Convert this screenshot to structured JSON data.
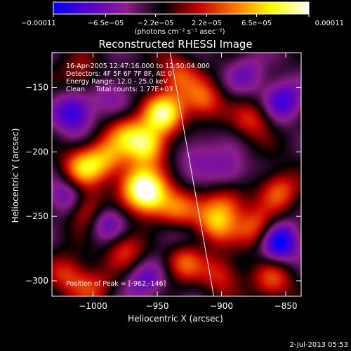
{
  "colorbar": {
    "tick_values": [
      -0.00011,
      -6.5e-05,
      -2.2e-05,
      2.2e-05,
      6.5e-05,
      0.00011
    ],
    "tick_labels": [
      "−0.00011",
      "−6.5e−05",
      "−2.2e−05",
      "2.2e−05",
      "6.5e−05",
      "0.00011"
    ],
    "range": [
      -0.00011,
      0.00011
    ],
    "unit_label": "(photons cm⁻² s⁻¹ asec⁻²)",
    "colors": [
      "#0000ff",
      "#5a00c8",
      "#8c1e8c",
      "#000000",
      "#c80000",
      "#ff7800",
      "#ffff00",
      "#ffffff"
    ]
  },
  "chart_data": {
    "type": "heatmap",
    "title": "Reconstructed RHESSI Image",
    "xlabel": "Heliocentric X (arcsec)",
    "ylabel": "Heliocentric Y (arcsec)",
    "xlim": [
      -1032,
      -838
    ],
    "ylim": [
      -312,
      -123
    ],
    "xticks": [
      -1000,
      -950,
      -900,
      -850
    ],
    "yticks": [
      -150,
      -200,
      -250,
      -300
    ],
    "xtick_labels": [
      "−1000",
      "−950",
      "−900",
      "−850"
    ],
    "ytick_labels": [
      "−150",
      "−200",
      "−250",
      "−300"
    ],
    "limb_line": [
      [
        -940,
        -123
      ],
      [
        -906,
        -312
      ]
    ],
    "info_lines": [
      "16-Apr-2005 12:47:16.000 to 12:50:04.000",
      "Detectors: 4F 5F 6F 7F 8F, Att 0",
      "Energy Range: 12.0 - 25.0 keV",
      "Clean     Total counts: 1.77E+03"
    ],
    "peak_label": "Position of Peak = [-962,-146]",
    "peak_position": [
      -962,
      -146
    ],
    "blobs": [
      {
        "x": -945,
        "y": -170,
        "v": 1.0
      },
      {
        "x": -958,
        "y": -195,
        "v": 0.95
      },
      {
        "x": -955,
        "y": -235,
        "v": 0.85
      },
      {
        "x": -965,
        "y": -225,
        "v": 0.8
      },
      {
        "x": -935,
        "y": -245,
        "v": 0.6
      },
      {
        "x": -1008,
        "y": -212,
        "v": 0.75
      },
      {
        "x": -990,
        "y": -205,
        "v": 0.6
      },
      {
        "x": -1005,
        "y": -245,
        "v": 0.65
      },
      {
        "x": -975,
        "y": -185,
        "v": 0.55
      },
      {
        "x": -915,
        "y": -160,
        "v": 0.6
      },
      {
        "x": -905,
        "y": -255,
        "v": 0.7
      },
      {
        "x": -895,
        "y": -240,
        "v": 0.5
      },
      {
        "x": -930,
        "y": -285,
        "v": 0.55
      },
      {
        "x": -975,
        "y": -275,
        "v": 0.5
      },
      {
        "x": -872,
        "y": -260,
        "v": 0.6
      },
      {
        "x": -855,
        "y": -230,
        "v": 0.55
      },
      {
        "x": -860,
        "y": -300,
        "v": 0.5
      },
      {
        "x": -900,
        "y": -295,
        "v": 0.45
      },
      {
        "x": -1020,
        "y": -295,
        "v": 0.45
      },
      {
        "x": -1000,
        "y": -305,
        "v": 0.4
      },
      {
        "x": -875,
        "y": -175,
        "v": 0.45
      },
      {
        "x": -1010,
        "y": -140,
        "v": 0.35
      },
      {
        "x": -935,
        "y": -140,
        "v": 0.5
      },
      {
        "x": -1015,
        "y": -170,
        "v": -0.7
      },
      {
        "x": -1020,
        "y": -235,
        "v": -0.5
      },
      {
        "x": -990,
        "y": -255,
        "v": -0.55
      },
      {
        "x": -855,
        "y": -270,
        "v": -0.85
      },
      {
        "x": -852,
        "y": -160,
        "v": -0.6
      },
      {
        "x": -895,
        "y": -215,
        "v": -0.4
      },
      {
        "x": -960,
        "y": -300,
        "v": -0.45
      },
      {
        "x": -920,
        "y": -200,
        "v": -0.3
      },
      {
        "x": -880,
        "y": -140,
        "v": -0.35
      },
      {
        "x": -940,
        "y": -265,
        "v": -0.3
      },
      {
        "x": -985,
        "y": -155,
        "v": -0.3
      }
    ]
  },
  "footer": {
    "timestamp": "2-Jul-2013 05:53"
  }
}
